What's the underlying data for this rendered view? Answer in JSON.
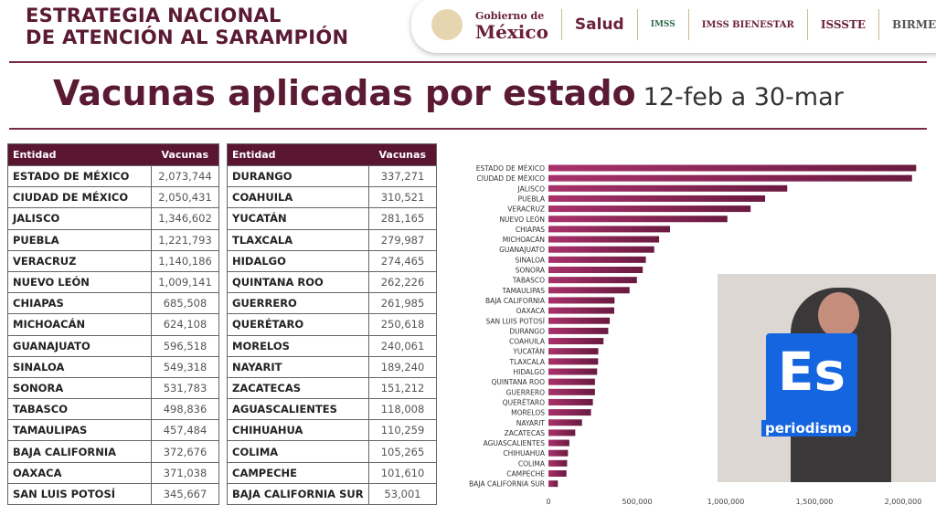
{
  "header": {
    "title_line1": "ESTRATEGIA NACIONAL",
    "title_line2": "DE ATENCIÓN AL SARAMPIÓN",
    "logos": [
      "Gobierno de",
      "México",
      "Salud",
      "IMSS",
      "IMSS BIENESTAR",
      "ISSSTE",
      "BIRMEX"
    ]
  },
  "main": {
    "title": "Vacunas aplicadas por estado",
    "subtitle": "12-feb a 30-mar"
  },
  "table": {
    "headers": [
      "Entidad",
      "Vacunas"
    ]
  },
  "overlay": {
    "logo_big": "Es",
    "logo_small": "periodismo"
  },
  "chart_data": {
    "type": "bar",
    "orientation": "horizontal",
    "xlim": [
      0,
      2100000
    ],
    "ticks": [
      "0",
      "500,000",
      "1,000,000",
      "1,500,000",
      "2,000,000"
    ],
    "tick_values": [
      0,
      500000,
      1000000,
      1500000,
      2000000
    ],
    "bar_color": "#7a1f4a",
    "categories": [
      "ESTADO DE MÉXICO",
      "CIUDAD DE MÉXICO",
      "JALISCO",
      "PUEBLA",
      "VERACRUZ",
      "NUEVO LEÓN",
      "CHIAPAS",
      "MICHOACÁN",
      "GUANAJUATO",
      "SINALOA",
      "SONORA",
      "TABASCO",
      "TAMAULIPAS",
      "BAJA CALIFORNIA",
      "OAXACA",
      "SAN LUIS POTOSÍ",
      "DURANGO",
      "COAHUILA",
      "YUCATÁN",
      "TLAXCALA",
      "HIDALGO",
      "QUINTANA ROO",
      "GUERRERO",
      "QUERÉTARO",
      "MORELOS",
      "NAYARIT",
      "ZACATECAS",
      "AGUASCALIENTES",
      "CHIHUAHUA",
      "COLIMA",
      "CAMPECHE",
      "BAJA CALIFORNIA SUR"
    ],
    "values": [
      2073744,
      2050431,
      1346602,
      1221793,
      1140186,
      1009141,
      685508,
      624108,
      596518,
      549318,
      531783,
      498836,
      457484,
      372676,
      371038,
      345667,
      337271,
      310521,
      281165,
      279987,
      274465,
      262226,
      261985,
      250618,
      240061,
      189240,
      151212,
      118008,
      110259,
      105265,
      101610,
      53001
    ]
  }
}
